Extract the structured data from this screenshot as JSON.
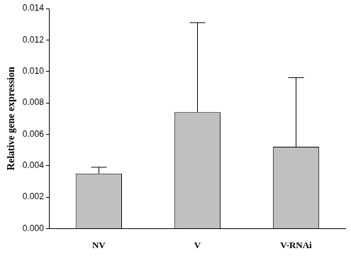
{
  "chart_data": {
    "type": "bar",
    "y_label": "Relative gene expression",
    "categories": [
      "NV",
      "V",
      "V-RNAi"
    ],
    "values": [
      0.0035,
      0.0074,
      0.0052
    ],
    "error": [
      0.0004,
      0.0057,
      0.0044
    ],
    "color": "#c0c0c0",
    "ylim": [
      0,
      0.014
    ],
    "yticks": [
      {
        "value": 0,
        "label": "0.000"
      },
      {
        "value": 0.002,
        "label": "0.002"
      },
      {
        "value": 0.004,
        "label": "0.004"
      },
      {
        "value": 0.006,
        "label": "0.006"
      },
      {
        "value": 0.008,
        "label": "0.008"
      },
      {
        "value": 0.01,
        "label": "0.010"
      },
      {
        "value": 0.012,
        "label": "0.012"
      },
      {
        "value": 0.014,
        "label": "0.014"
      }
    ],
    "grid": false
  }
}
